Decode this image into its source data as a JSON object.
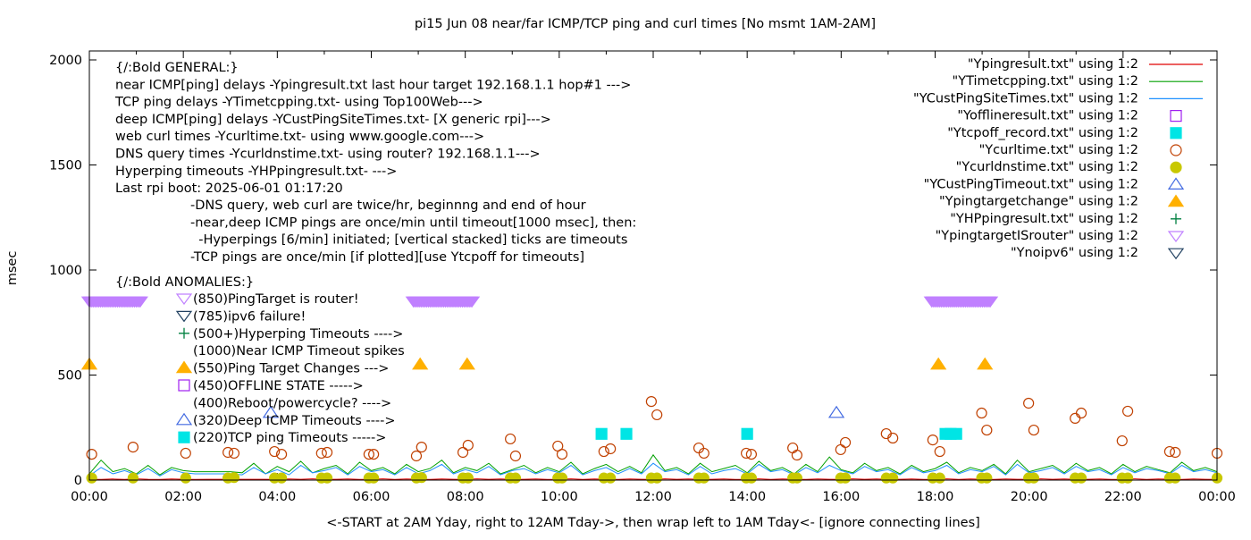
{
  "chart_data": {
    "type": "scatter",
    "title": "pi15 Jun 08  near/far ICMP/TCP ping and curl times [No msmt 1AM-2AM]",
    "xlabel": "<-START at 2AM Yday, right to 12AM Tday->, then wrap left to 1AM Tday<- [ignore connecting lines]",
    "ylabel": "msec",
    "xlim_hours": [
      0,
      24
    ],
    "ylim": [
      0,
      2000
    ],
    "y_ticks": [
      "0",
      "500",
      "1000",
      "1500",
      "2000"
    ],
    "x_ticks": [
      "00:00",
      "02:00",
      "04:00",
      "06:00",
      "08:00",
      "10:00",
      "12:00",
      "14:00",
      "16:00",
      "18:00",
      "20:00",
      "22:00",
      "00:00"
    ],
    "legend_position": "top-right",
    "legend": [
      {
        "label": "\"Ypingresult.txt\" using 1:2",
        "style": "line",
        "color": "#e00000"
      },
      {
        "label": "\"YTimetcpping.txt\" using 1:2",
        "style": "line",
        "color": "#00a000"
      },
      {
        "label": "\"YCustPingSiteTimes.txt\" using 1:2",
        "style": "line",
        "color": "#1e90ff"
      },
      {
        "label": "\"Yofflineresult.txt\" using 1:2",
        "style": "open-square",
        "color": "#a020f0"
      },
      {
        "label": "\"Ytcpoff_record.txt\" using 1:2",
        "style": "filled-square",
        "color": "#00e5e5"
      },
      {
        "label": "\"Ycurltime.txt\" using 1:2",
        "style": "open-circle",
        "color": "#c04000"
      },
      {
        "label": "\"Ycurldnstime.txt\" using 1:2",
        "style": "filled-circle",
        "color": "#c8c800"
      },
      {
        "label": "\"YCustPingTimeout.txt\" using 1:2",
        "style": "open-triangle-up",
        "color": "#4169e1"
      },
      {
        "label": "\"Ypingtargetchange\" using 1:2",
        "style": "filled-triangle-up",
        "color": "#ffb000"
      },
      {
        "label": "\"YHPpingresult.txt\" using 1:2",
        "style": "plus",
        "color": "#008040"
      },
      {
        "label": "\"YpingtargetISrouter\" using 1:2",
        "style": "open-triangle-down",
        "color": "#c080ff"
      },
      {
        "label": "\"Ynoipv6\" using 1:2",
        "style": "open-triangle-down",
        "color": "#204060"
      }
    ],
    "notes_general": [
      "{/:Bold GENERAL:}",
      "near ICMP[ping] delays -Ypingresult.txt last hour target 192.168.1.1 hop#1 --->",
      "TCP ping delays -YTimetcpping.txt- using Top100Web--->",
      "deep ICMP[ping] delays -YCustPingSiteTimes.txt- [X generic rpi]--->",
      "web curl times -Ycurltime.txt- using www.google.com--->",
      "DNS query times -Ycurldnstime.txt- using router? 192.168.1.1--->",
      "Hyperping timeouts -YHPpingresult.txt- --->",
      "Last rpi boot: 2025-06-01 01:17:20"
    ],
    "notes_indented": [
      "-DNS query, web curl are twice/hr, beginnng and end of hour",
      "-near,deep ICMP pings are once/min until timeout[1000 msec], then:",
      "  -Hyperpings [6/min] initiated; [vertical stacked] ticks are timeouts",
      "-TCP pings are once/min [if plotted][use Ytcpoff for timeouts]"
    ],
    "anomalies_title": "{/:Bold ANOMALIES:}",
    "anomalies": [
      {
        "label": "(850)PingTarget is router!",
        "style": "open-triangle-down",
        "color": "#c080ff"
      },
      {
        "label": "(785)ipv6 failure!",
        "style": "open-triangle-down",
        "color": "#204060"
      },
      {
        "label": "(500+)Hyperping Timeouts ---->",
        "style": "plus",
        "color": "#008040"
      },
      {
        "label": "(1000)Near ICMP Timeout spikes",
        "style": "none",
        "color": "#000000"
      },
      {
        "label": "(550)Ping Target Changes --->",
        "style": "filled-triangle-up",
        "color": "#ffb000"
      },
      {
        "label": "(450)OFFLINE STATE ----->",
        "style": "open-square",
        "color": "#a020f0"
      },
      {
        "label": "(400)Reboot/powercycle? ---->",
        "style": "none",
        "color": "#000000"
      },
      {
        "label": "(320)Deep ICMP Timeouts ---->",
        "style": "open-triangle-up",
        "color": "#4169e1"
      },
      {
        "label": "(220)TCP ping Timeouts ----->",
        "style": "filled-square",
        "color": "#00e5e5"
      }
    ],
    "series": {
      "Ypingresult": [
        4,
        3,
        5,
        3,
        6,
        4,
        3,
        5,
        4,
        3,
        4,
        4,
        4,
        4,
        4,
        4,
        3,
        5,
        4,
        6,
        3,
        4,
        5,
        3,
        4,
        6,
        3,
        5,
        4,
        3,
        5,
        4,
        3,
        6,
        4,
        5,
        3,
        4,
        5,
        3,
        4,
        6,
        3,
        5,
        4,
        3,
        5,
        4,
        3,
        6,
        4,
        5,
        3,
        4,
        5,
        3,
        4,
        6,
        3,
        5,
        4,
        3,
        5,
        4,
        3,
        6,
        4,
        5,
        3,
        4,
        5,
        3,
        4,
        6,
        3,
        5,
        4,
        3,
        5,
        4,
        3,
        6,
        4,
        5,
        3,
        4,
        5,
        3,
        4,
        6,
        3,
        5,
        4,
        3,
        5,
        4,
        3
      ],
      "YTimetcpping": [
        30,
        95,
        40,
        55,
        30,
        70,
        25,
        60,
        45,
        40,
        40,
        40,
        40,
        35,
        80,
        30,
        65,
        40,
        90,
        35,
        55,
        70,
        30,
        85,
        45,
        60,
        30,
        75,
        40,
        55,
        95,
        35,
        60,
        45,
        80,
        30,
        50,
        70,
        35,
        60,
        40,
        85,
        30,
        55,
        75,
        40,
        65,
        35,
        120,
        45,
        60,
        30,
        80,
        40,
        55,
        70,
        35,
        90,
        45,
        60,
        30,
        75,
        40,
        110,
        50,
        35,
        80,
        45,
        60,
        30,
        70,
        40,
        55,
        85,
        35,
        60,
        45,
        75,
        30,
        95,
        40,
        55,
        70,
        35,
        80,
        45,
        60,
        30,
        75,
        40,
        65,
        50,
        35,
        85,
        45,
        60,
        40
      ],
      "YCustPingSiteTimes": [
        20,
        60,
        30,
        45,
        25,
        55,
        20,
        50,
        35,
        30,
        30,
        30,
        30,
        25,
        60,
        30,
        50,
        25,
        70,
        35,
        45,
        60,
        25,
        65,
        40,
        50,
        25,
        60,
        30,
        45,
        75,
        30,
        50,
        35,
        65,
        25,
        45,
        55,
        30,
        50,
        35,
        70,
        25,
        45,
        60,
        30,
        55,
        30,
        80,
        40,
        50,
        25,
        65,
        30,
        45,
        55,
        30,
        75,
        40,
        50,
        25,
        60,
        35,
        70,
        45,
        30,
        65,
        40,
        50,
        25,
        60,
        35,
        45,
        70,
        30,
        50,
        40,
        65,
        25,
        75,
        35,
        45,
        60,
        30,
        65,
        40,
        50,
        25,
        60,
        35,
        55,
        45,
        30,
        70,
        40,
        50,
        35
      ],
      "Ycurltime": [
        [
          0.05,
          123
        ],
        [
          0.93,
          157
        ],
        [
          2.05,
          128
        ],
        [
          2.95,
          132
        ],
        [
          3.08,
          128
        ],
        [
          3.94,
          136
        ],
        [
          4.09,
          123
        ],
        [
          4.94,
          128
        ],
        [
          5.06,
          132
        ],
        [
          5.95,
          123
        ],
        [
          6.05,
          123
        ],
        [
          6.96,
          115
        ],
        [
          7.07,
          157
        ],
        [
          7.95,
          132
        ],
        [
          8.06,
          166
        ],
        [
          8.96,
          196
        ],
        [
          9.07,
          115
        ],
        [
          9.97,
          162
        ],
        [
          10.06,
          123
        ],
        [
          10.95,
          136
        ],
        [
          11.09,
          149
        ],
        [
          11.96,
          374
        ],
        [
          12.08,
          311
        ],
        [
          12.97,
          153
        ],
        [
          13.08,
          128
        ],
        [
          13.98,
          128
        ],
        [
          14.09,
          123
        ],
        [
          14.97,
          153
        ],
        [
          15.06,
          119
        ],
        [
          15.99,
          145
        ],
        [
          16.09,
          179
        ],
        [
          16.96,
          221
        ],
        [
          17.1,
          200
        ],
        [
          17.95,
          191
        ],
        [
          18.1,
          136
        ],
        [
          18.99,
          319
        ],
        [
          19.1,
          238
        ],
        [
          19.99,
          366
        ],
        [
          20.1,
          238
        ],
        [
          20.98,
          294
        ],
        [
          21.11,
          319
        ],
        [
          21.98,
          187
        ],
        [
          22.1,
          328
        ],
        [
          22.99,
          136
        ],
        [
          23.11,
          132
        ],
        [
          24.0,
          128
        ]
      ],
      "Ycurldnstime": [
        [
          0.05,
          10
        ],
        [
          0.93,
          10
        ],
        [
          2.05,
          10
        ],
        [
          2.95,
          10
        ],
        [
          3.08,
          12
        ],
        [
          3.94,
          10
        ],
        [
          4.09,
          10
        ],
        [
          4.94,
          10
        ],
        [
          5.06,
          10
        ],
        [
          5.95,
          10
        ],
        [
          6.05,
          10
        ],
        [
          6.96,
          10
        ],
        [
          7.07,
          12
        ],
        [
          7.95,
          10
        ],
        [
          8.06,
          10
        ],
        [
          8.96,
          10
        ],
        [
          9.07,
          10
        ],
        [
          9.97,
          10
        ],
        [
          10.06,
          10
        ],
        [
          10.95,
          10
        ],
        [
          11.09,
          10
        ],
        [
          11.96,
          10
        ],
        [
          12.08,
          10
        ],
        [
          12.97,
          10
        ],
        [
          13.08,
          10
        ],
        [
          13.98,
          10
        ],
        [
          14.09,
          10
        ],
        [
          14.97,
          10
        ],
        [
          15.06,
          10
        ],
        [
          15.99,
          10
        ],
        [
          16.09,
          10
        ],
        [
          16.96,
          10
        ],
        [
          17.1,
          10
        ],
        [
          17.95,
          10
        ],
        [
          18.1,
          10
        ],
        [
          18.99,
          10
        ],
        [
          19.1,
          10
        ],
        [
          19.99,
          10
        ],
        [
          20.1,
          10
        ],
        [
          20.98,
          10
        ],
        [
          21.11,
          10
        ],
        [
          21.98,
          10
        ],
        [
          22.1,
          10
        ],
        [
          22.99,
          10
        ],
        [
          23.11,
          10
        ],
        [
          24.0,
          10
        ]
      ],
      "Ytcpoff_record": [
        [
          10.9,
          220
        ],
        [
          11.43,
          220
        ],
        [
          14.0,
          220
        ],
        [
          18.22,
          220
        ],
        [
          18.33,
          220
        ],
        [
          18.45,
          220
        ]
      ],
      "YCustPingTimeout": [
        [
          3.86,
          320
        ],
        [
          15.9,
          320
        ]
      ],
      "Ypingtargetchange": [
        [
          0.0,
          550
        ],
        [
          7.04,
          550
        ],
        [
          8.04,
          550
        ],
        [
          18.07,
          550
        ],
        [
          19.06,
          550
        ]
      ],
      "YpingtargetISrouter_ranges": [
        [
          0.0,
          1.1
        ],
        [
          6.9,
          8.14
        ],
        [
          17.93,
          19.2
        ]
      ],
      "YpingtargetISrouter_value": 850
    }
  }
}
